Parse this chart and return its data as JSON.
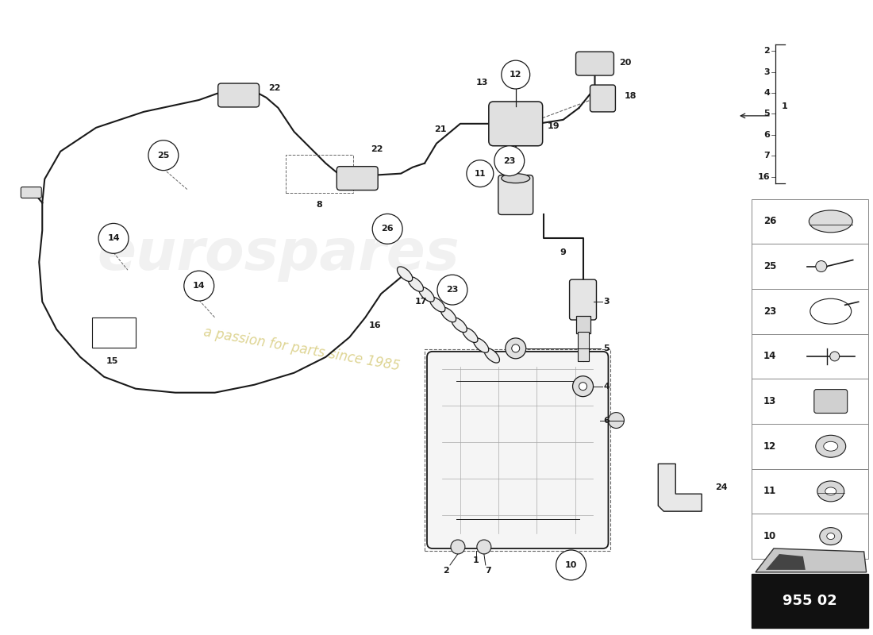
{
  "part_number": "955 02",
  "bg_color": "#ffffff",
  "line_color": "#1a1a1a",
  "watermark_text1": "eurospares",
  "watermark_text2": "a passion for parts since 1985",
  "watermark_color1": "#c8c8c8",
  "watermark_color2": "#c8b84a",
  "right_panel_nums_top": [
    "2",
    "3",
    "4",
    "5",
    "6",
    "7",
    "16"
  ],
  "right_panel_box_nums": [
    "26",
    "25",
    "23",
    "14",
    "13",
    "12",
    "11",
    "10"
  ]
}
